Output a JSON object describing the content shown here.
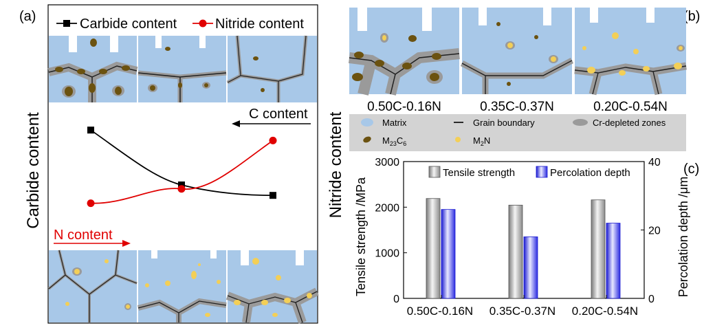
{
  "panels": {
    "a": {
      "tag": "(a)",
      "ylabel": "Carbide content",
      "c_arrow_label": "C content",
      "n_arrow_label": "N content"
    },
    "b": {
      "tag": "(b)"
    },
    "c": {
      "tag": "(c)"
    }
  },
  "colors": {
    "matrix": "#a8c8e8",
    "grain_boundary": "#202020",
    "cr_depleted": "#9a9a9a",
    "carbide": "#6b5210",
    "nitride": "#f3cf57",
    "carbide_line": "#000000",
    "nitride_line": "#e00000",
    "n_arrow": "#e00000",
    "legend_band": "#d3d3d3",
    "bar_tensile": "#b8b8b8",
    "bar_percolation": "#4b4bf0"
  },
  "micro_b_labels": [
    "0.50C-0.16N",
    "0.35C-0.37N",
    "0.20C-0.54N"
  ],
  "legend_b": [
    {
      "label": "Matrix",
      "icon": "matrix-ellipse-icon"
    },
    {
      "label": "Grain boundary",
      "icon": "line-icon"
    },
    {
      "label": "Cr-depleted zones",
      "icon": "gray-ellipse-icon"
    },
    {
      "label": "M",
      "sub1": "23",
      "mid": "C",
      "sub2": "6",
      "icon": "carbide-particle-icon"
    },
    {
      "label": "M",
      "sub1": "2",
      "mid": "N",
      "icon": "nitride-particle-icon"
    }
  ],
  "chart_data": [
    {
      "type": "line",
      "panel": "a",
      "x": [
        1,
        2,
        3
      ],
      "series": [
        {
          "name": "Carbide content",
          "values": [
            0.82,
            0.4,
            0.32
          ],
          "marker": "square",
          "color": "#000000"
        },
        {
          "name": "Nitride content",
          "values": [
            0.26,
            0.37,
            0.74
          ],
          "marker": "circle",
          "color": "#e00000"
        }
      ],
      "ylabel": "Carbide content",
      "ylim": [
        0,
        1
      ],
      "legend": "top"
    },
    {
      "type": "bar",
      "panel": "c",
      "categories": [
        "0.50C-0.16N",
        "0.35C-0.37N",
        "0.20C-0.54N"
      ],
      "series": [
        {
          "name": "Tensile strength",
          "values": [
            2190,
            2045,
            2160
          ],
          "axis": "left"
        },
        {
          "name": "Percolation depth",
          "values": [
            26,
            18,
            22
          ],
          "axis": "right"
        }
      ],
      "ylabel_left": "Tensile strength /MPa",
      "ylabel_right": "Percolation depth /μm",
      "ylim_left": [
        0,
        3000
      ],
      "ylim_right": [
        0,
        40
      ],
      "yticks_left": [
        "0",
        "1000",
        "2000",
        "3000"
      ],
      "yticks_right": [
        "0",
        "20",
        "40"
      ],
      "legend": "top"
    }
  ],
  "nitride_ylabel": "Nitride content"
}
